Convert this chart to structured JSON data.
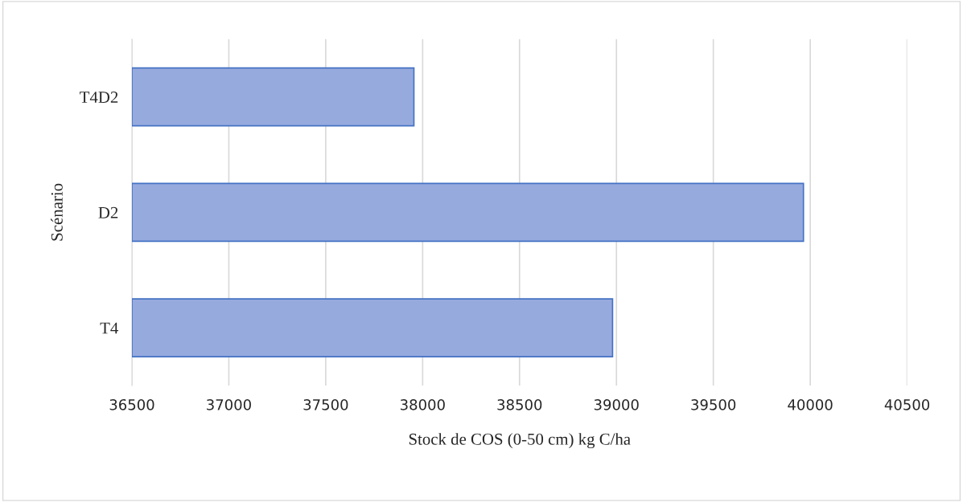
{
  "chart_data": {
    "type": "bar",
    "orientation": "horizontal",
    "xlabel": "Stock de COS (0-50 cm) kg C/ha",
    "ylabel": "Scénario",
    "categories": [
      "T4D2",
      "D2",
      "T4"
    ],
    "values": [
      37955,
      39965,
      38980
    ],
    "color": "#97aade",
    "xlim": [
      36500,
      40500
    ],
    "xticks": [
      36500,
      37000,
      37500,
      38000,
      38500,
      39000,
      39500,
      40000,
      40500
    ],
    "grid": "x"
  }
}
